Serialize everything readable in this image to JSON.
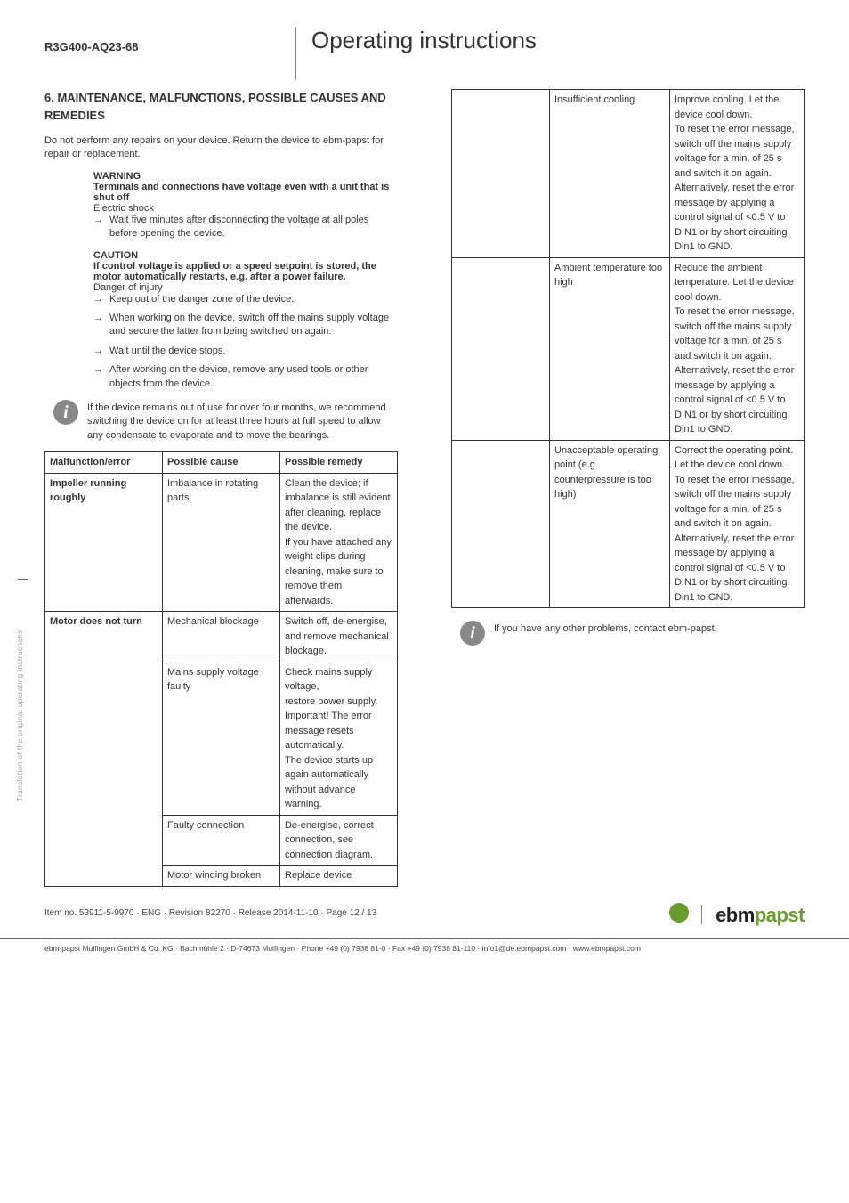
{
  "header": {
    "model": "R3G400-AQ23-68",
    "title": "Operating instructions"
  },
  "section": {
    "heading": "6. MAINTENANCE, MALFUNCTIONS, POSSIBLE CAUSES AND REMEDIES",
    "intro": "Do not perform any repairs on your device. Return the device to ebm-papst for repair or replacement.",
    "warning": {
      "label": "WARNING",
      "bold_line": "Terminals and connections have voltage even with a unit that is shut off",
      "plain_line": "Electric shock",
      "arrow": "→ Wait five minutes after disconnecting the voltage at all poles before opening the device."
    },
    "caution": {
      "label": "CAUTION",
      "bold_line": "If control voltage is applied or a speed setpoint is stored, the motor automatically restarts, e.g. after a power failure.",
      "plain_line": "Danger of injury",
      "arrows": [
        "Keep out of the danger zone of the device.",
        "When working on the device, switch off the mains supply voltage and secure the latter from being switched on again.",
        "Wait until the device stops.",
        "After working on the device, remove any used tools or other objects from the device."
      ]
    },
    "info_note": "If the device remains out of use for over four months, we recommend switching the device on for at least three hours at full speed to allow any condensate to evaporate and to move the bearings."
  },
  "table_left": {
    "headers": [
      "Malfunction/error",
      "Possible cause",
      "Possible remedy"
    ],
    "rows": [
      {
        "error": "Impeller running roughly",
        "cause": "Imbalance in rotating parts",
        "remedy": "Clean the device; if imbalance is still evident after cleaning, replace the device.\nIf you have attached any weight clips during cleaning, make sure to remove them afterwards.",
        "error_span": 1
      },
      {
        "error": "Motor does not turn",
        "cause": "Mechanical blockage",
        "remedy": "Switch off, de-energise, and remove mechanical blockage.",
        "error_span": 4
      },
      {
        "error": "",
        "cause": "Mains supply voltage faulty",
        "remedy": "Check mains supply voltage,\nrestore power supply.\nImportant! The error message resets automatically.\nThe device starts up again automatically without advance warning."
      },
      {
        "error": "",
        "cause": "Faulty connection",
        "remedy": "De-energise, correct connection, see connection diagram."
      },
      {
        "error": "",
        "cause": "Motor winding broken",
        "remedy": "Replace device"
      }
    ]
  },
  "table_right": {
    "rows": [
      {
        "col1": "",
        "cause": "Insufficient cooling",
        "remedy": "Improve cooling. Let the device cool down.\nTo reset the error message, switch off the mains supply voltage for a min. of 25 s and switch it on again.\nAlternatively, reset the error message by applying a control signal of <0.5 V to DIN1 or by short circuiting Din1 to GND."
      },
      {
        "col1": "",
        "cause": "Ambient temperature too high",
        "remedy": "Reduce the ambient temperature. Let the device cool down.\nTo reset the error message, switch off the mains supply voltage for a min. of 25 s and switch it on again.\nAlternatively, reset the error message by applying a control signal of <0.5 V to DIN1 or by short circuiting Din1 to GND."
      },
      {
        "col1": "",
        "cause": "Unacceptable operating point (e.g. counterpressure is too high)",
        "remedy": "Correct the operating point. Let the device cool down.\nTo reset the error message, switch off the mains supply voltage for a min. of 25 s and switch it on again.\nAlternatively, reset the error message by applying a control signal of <0.5 V to DIN1 or by short circuiting Din1 to GND."
      }
    ]
  },
  "closing_note": "If you have any other problems, contact ebm-papst.",
  "side_text": "Translation of the original operating instructions",
  "footer": {
    "meta": "Item no. 53911-5-9970 · ENG · Revision 82270 · Release 2014-11-10 · Page 12 / 13",
    "logo_dark": "ebm",
    "logo_green": "papst",
    "company": "ebm-papst Mulfingen GmbH & Co. KG · Bachmühle 2 · D-74673 Mulfingen · Phone +49 (0) 7938 81-0 · Fax +49 (0) 7938 81-110 · info1@de.ebmpapst.com · www.ebmpapst.com"
  }
}
